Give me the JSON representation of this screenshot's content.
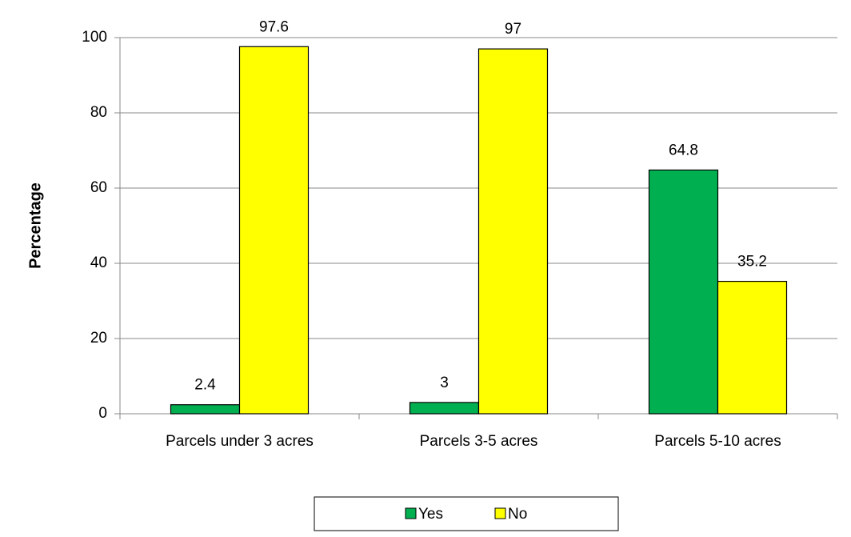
{
  "chart_data": {
    "type": "bar",
    "y_label": "Percentage",
    "categories": [
      "Parcels under 3 acres",
      "Parcels 3-5 acres",
      "Parcels 5-10 acres"
    ],
    "series": [
      {
        "name": "Yes",
        "color": "#00b050",
        "values": [
          2.4,
          3,
          64.8
        ]
      },
      {
        "name": "No",
        "color": "#ffff00",
        "values": [
          97.6,
          97,
          35.2
        ]
      }
    ],
    "ylim": [
      0,
      100
    ],
    "yticks": [
      0,
      20,
      40,
      60,
      80,
      100
    ],
    "grid": true,
    "legend": "bottom"
  }
}
